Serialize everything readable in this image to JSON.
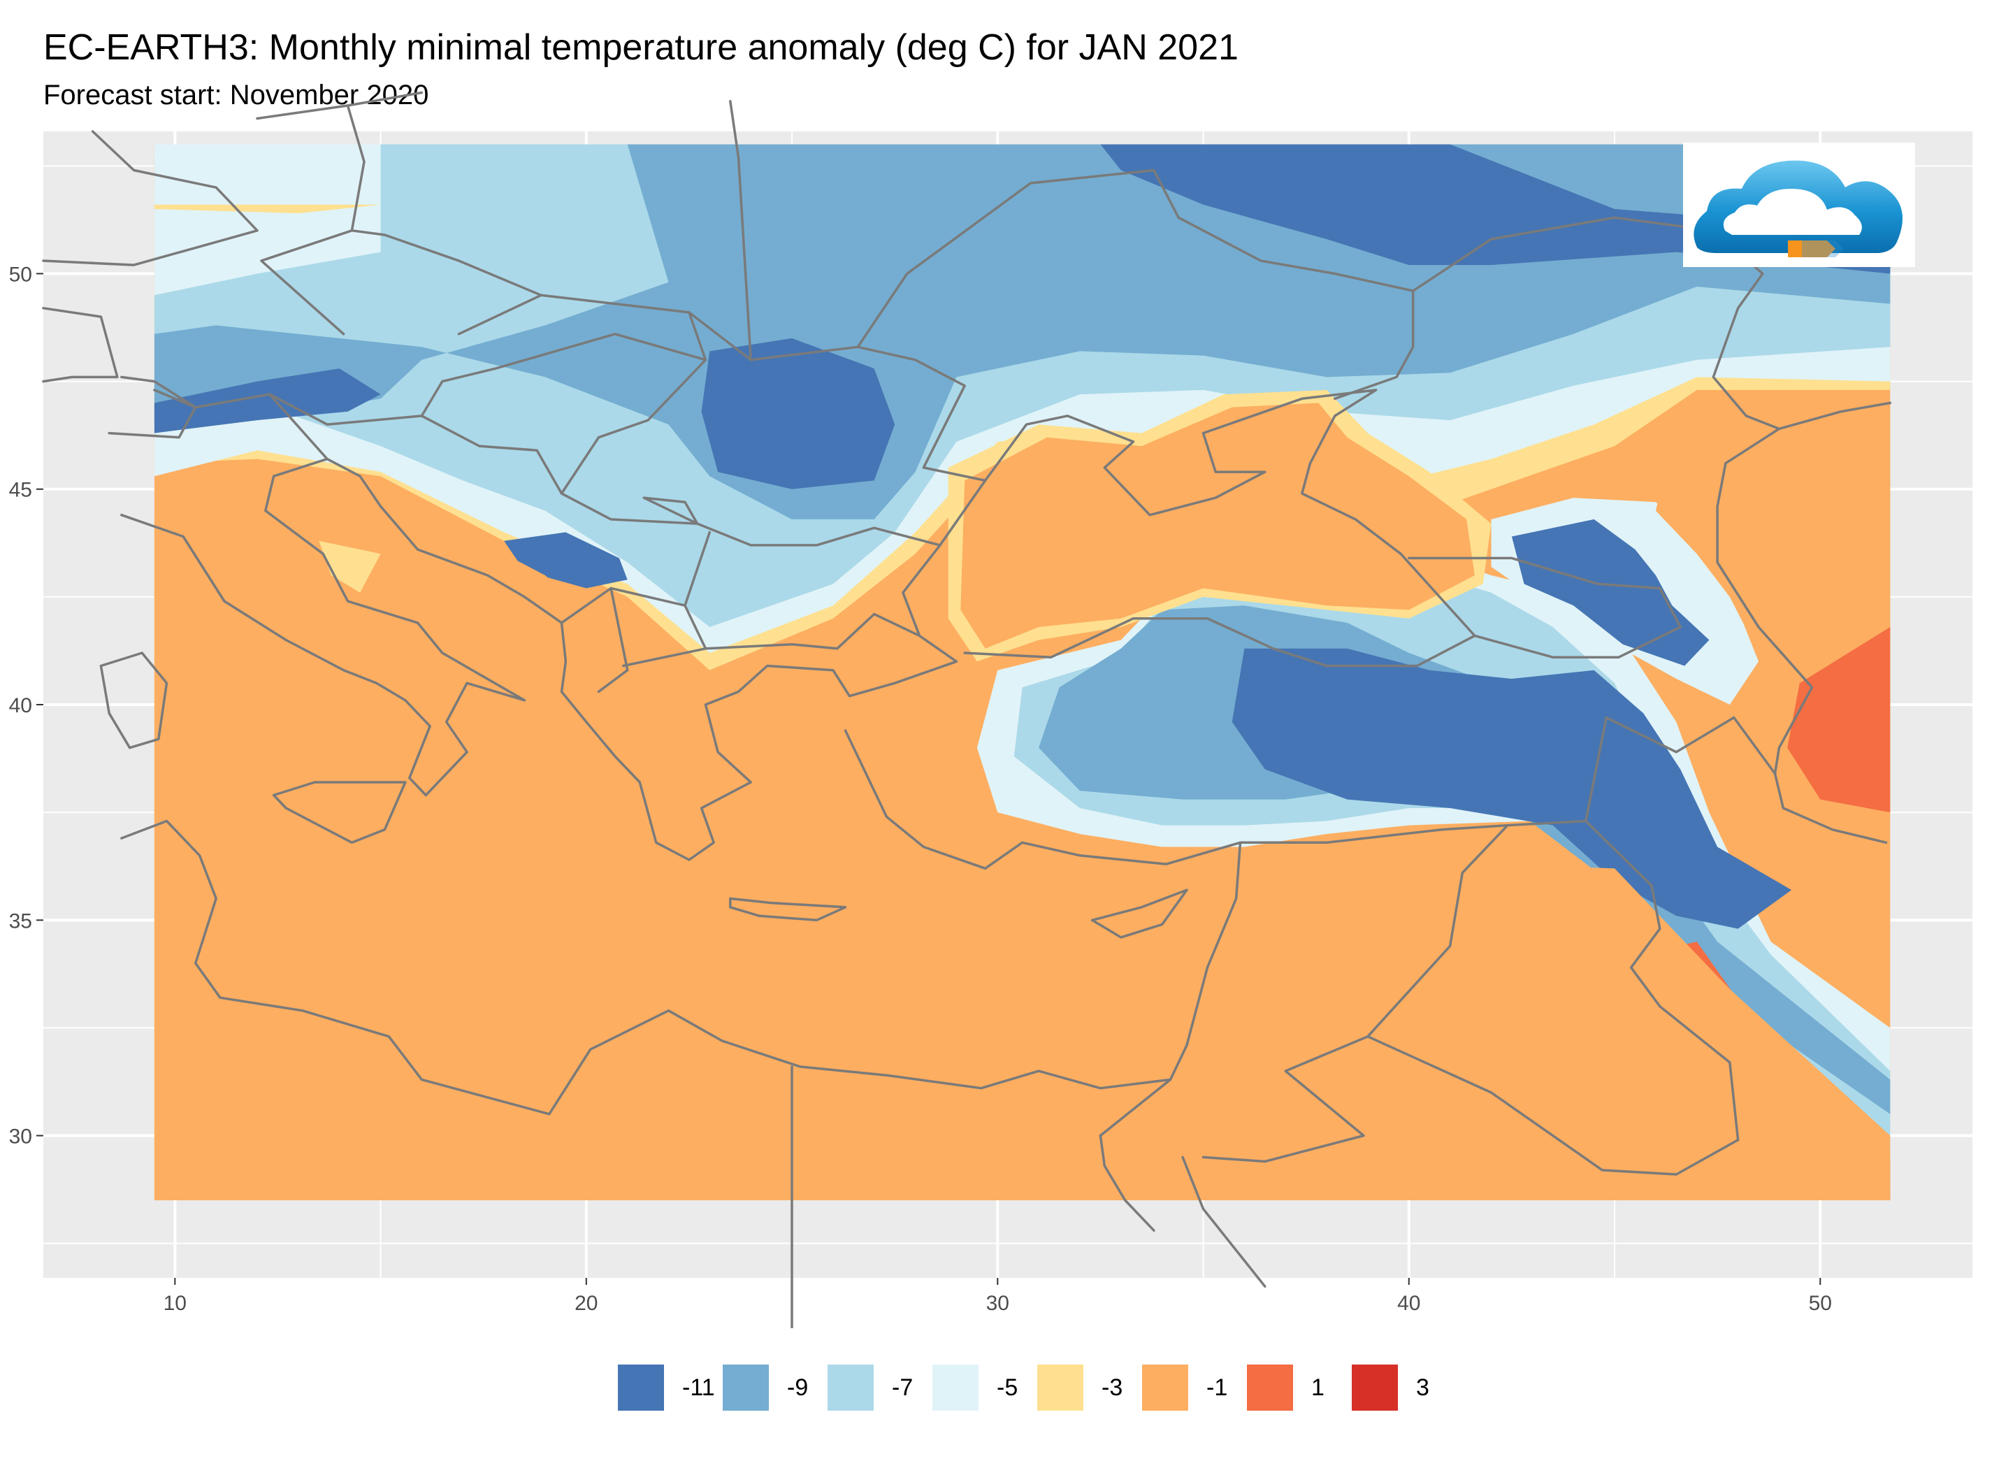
{
  "title": "EC-EARTH3: Monthly minimal temperature anomaly (deg C) for JAN 2021",
  "subtitle": "Forecast start: November 2020",
  "map": {
    "lon_range": [
      6.8,
      53.7
    ],
    "lat_range": [
      26.7,
      53.3
    ],
    "data_lon_range": [
      9.5,
      51.7
    ],
    "data_lat_range": [
      28.5,
      53.0
    ],
    "x_ticks": [
      10,
      20,
      30,
      40,
      50
    ],
    "y_ticks": [
      30,
      35,
      40,
      45,
      50
    ],
    "panel_background": "#ebebeb",
    "grid_color": "#ffffff",
    "border_color": "#7a7a7a",
    "base_fill": "#fdae61"
  },
  "legend": {
    "items": [
      {
        "label": "-11",
        "color": "#4575b4"
      },
      {
        "label": "-9",
        "color": "#74add1"
      },
      {
        "label": "-7",
        "color": "#abd9e9"
      },
      {
        "label": "-5",
        "color": "#e0f3f8"
      },
      {
        "label": "-3",
        "color": "#fee090"
      },
      {
        "label": "-1",
        "color": "#fdae61"
      },
      {
        "label": "1",
        "color": "#f46d43"
      },
      {
        "label": "3",
        "color": "#d73027"
      }
    ]
  },
  "logo": {
    "icon": "cloud-logo-icon"
  }
}
